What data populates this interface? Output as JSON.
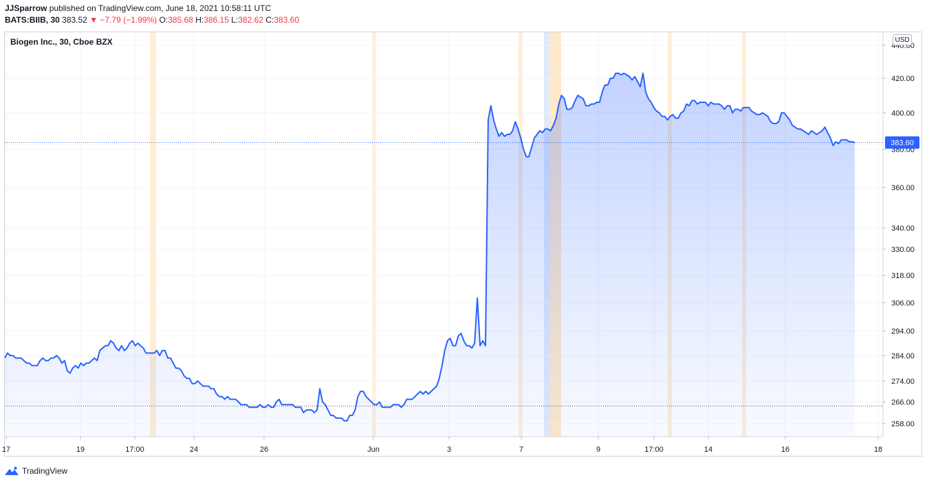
{
  "header": {
    "publisher": "JJSparrow",
    "published_text": "published on TradingView.com, June 18, 2021 10:58:11 UTC"
  },
  "ohlc": {
    "symbol": "BATS:BIIB, 30",
    "last": "383.52",
    "change": "▼ −7.79 (−1.99%)",
    "o_label": "O:",
    "o_value": "385.68",
    "h_label": "H:",
    "h_value": "386.15",
    "l_label": "L:",
    "l_value": "382.62",
    "c_label": "C:",
    "c_value": "383.60"
  },
  "chart_title": "Biogen Inc., 30, Cboe BZX",
  "currency": "USD",
  "footer": {
    "brand": "TradingView"
  },
  "colors": {
    "line": "#2962ff",
    "price_label_bg": "#2962ff",
    "session_orange": "#ffe0b2",
    "session_blue": "#dde8fb"
  },
  "chart_data": {
    "type": "area",
    "title": "Biogen Inc., 30, Cboe BZX",
    "x_ticks": [
      "17",
      "19",
      "17:00",
      "24",
      "26",
      "Jun",
      "3",
      "7",
      "9",
      "17:00",
      "14",
      "16",
      "18"
    ],
    "y_ticks": [
      258,
      266,
      274,
      284,
      294,
      306,
      318,
      330,
      340,
      360,
      380,
      400,
      420,
      440
    ],
    "y_tick_labels": [
      "258.00",
      "266.00",
      "274.00",
      "284.00",
      "294.00",
      "306.00",
      "318.00",
      "330.00",
      "340.00",
      "360.00",
      "380.00",
      "400.00",
      "420.00",
      "440.00"
    ],
    "y_scale": "log",
    "ylim": [
      253,
      442
    ],
    "current_price": 383.6,
    "current_price_label": "383.60",
    "lowest_price_line": 264.5,
    "series": [
      {
        "values": [
          283,
          285,
          284,
          284,
          283,
          283,
          283,
          282,
          281,
          281,
          280,
          280,
          280,
          282,
          283,
          282,
          282,
          283,
          283,
          284,
          283,
          281,
          282,
          278,
          277,
          279,
          280,
          279,
          281,
          280,
          281,
          281,
          282,
          283,
          282,
          286,
          287,
          288,
          288,
          290,
          289,
          287,
          286,
          288,
          286,
          287,
          289,
          290,
          288,
          289,
          288,
          287,
          285,
          285,
          285,
          285,
          286,
          284,
          286,
          286,
          283,
          283,
          281,
          279,
          279,
          278,
          276,
          275,
          275,
          273,
          273,
          274,
          273,
          272,
          272,
          272,
          271,
          271,
          269,
          268,
          268,
          267,
          268,
          267,
          267,
          267,
          266,
          265,
          265,
          265,
          264,
          264,
          264,
          264,
          265,
          264,
          264,
          265,
          264,
          264,
          266,
          267,
          265,
          265,
          265,
          265,
          265,
          264,
          264,
          264,
          262,
          263,
          263,
          263,
          262,
          263,
          271,
          266,
          265,
          263,
          261,
          261,
          260,
          260,
          260,
          259,
          259,
          261,
          261,
          263,
          268,
          270,
          270,
          268,
          267,
          266,
          265,
          265,
          266,
          264,
          264,
          264,
          264,
          265,
          265,
          265,
          264,
          265,
          267,
          267,
          267,
          268,
          269,
          270,
          269,
          270,
          269,
          270,
          271,
          272,
          275,
          280,
          286,
          290,
          291,
          288,
          288,
          292,
          293,
          290,
          288,
          288,
          287,
          289,
          308,
          288,
          290,
          288,
          396,
          404,
          396,
          391,
          387,
          389,
          387,
          388,
          388,
          390,
          395,
          391,
          386,
          380,
          376,
          376,
          381,
          386,
          388,
          390,
          389,
          391,
          391,
          390,
          393,
          397,
          405,
          410,
          408,
          402,
          402,
          403,
          407,
          410,
          409,
          408,
          404,
          404,
          405,
          405,
          406,
          406,
          412,
          416,
          416,
          420,
          420,
          423,
          423,
          422,
          423,
          422,
          421,
          419,
          421,
          418,
          415,
          423,
          412,
          408,
          406,
          403,
          401,
          400,
          398,
          398,
          396,
          398,
          399,
          397,
          397,
          400,
          401,
          405,
          404,
          407,
          407,
          405,
          406,
          406,
          406,
          404,
          406,
          405,
          405,
          405,
          404,
          402,
          404,
          404,
          400,
          402,
          402,
          401,
          403,
          403,
          403,
          401,
          400,
          399,
          399,
          400,
          399,
          398,
          395,
          394,
          394,
          395,
          400,
          400,
          398,
          396,
          393,
          392,
          391,
          391,
          390,
          389,
          388,
          390,
          389,
          388,
          389,
          390,
          392,
          389,
          386,
          382,
          384,
          383,
          385,
          385,
          385,
          384,
          384,
          383.6
        ]
      }
    ]
  }
}
